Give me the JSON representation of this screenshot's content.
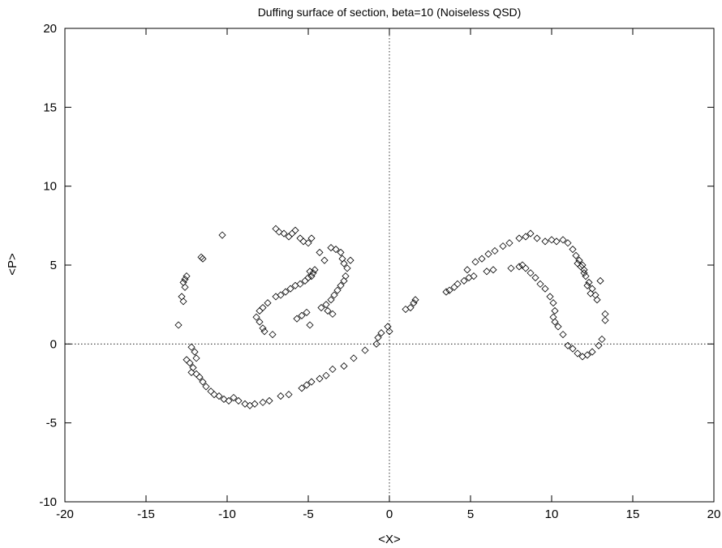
{
  "chart_data": {
    "type": "scatter",
    "title": "Duffing surface of section, beta=10 (Noiseless QSD)",
    "xlabel": "<X>",
    "ylabel": "<P>",
    "xlim": [
      -20,
      20
    ],
    "ylim": [
      -10,
      20
    ],
    "xticks": [
      -20,
      -15,
      -10,
      -5,
      0,
      5,
      10,
      15,
      20
    ],
    "yticks": [
      -10,
      -5,
      0,
      5,
      10,
      15,
      20
    ],
    "zero_lines": "dotted",
    "marker": "diamond",
    "series": [
      {
        "points": [
          [
            -10.3,
            6.9
          ],
          [
            -13.0,
            1.2
          ],
          [
            -12.5,
            4.3
          ],
          [
            -12.6,
            4.1
          ],
          [
            -12.7,
            3.9
          ],
          [
            -12.6,
            3.6
          ],
          [
            -12.8,
            3.0
          ],
          [
            -12.7,
            2.7
          ],
          [
            -11.6,
            5.5
          ],
          [
            -11.5,
            5.4
          ],
          [
            -7.0,
            7.3
          ],
          [
            -6.8,
            7.1
          ],
          [
            -6.5,
            7.0
          ],
          [
            -6.2,
            6.8
          ],
          [
            -6.0,
            7.0
          ],
          [
            -5.8,
            7.2
          ],
          [
            -5.5,
            6.7
          ],
          [
            -5.3,
            6.5
          ],
          [
            -5.0,
            6.4
          ],
          [
            -4.8,
            6.7
          ],
          [
            -4.3,
            5.8
          ],
          [
            -4.0,
            5.3
          ],
          [
            -3.6,
            6.1
          ],
          [
            -3.3,
            6.0
          ],
          [
            -3.0,
            5.8
          ],
          [
            -2.9,
            5.4
          ],
          [
            -2.8,
            5.1
          ],
          [
            -2.6,
            4.8
          ],
          [
            -2.4,
            5.3
          ],
          [
            -7.0,
            3.0
          ],
          [
            -6.7,
            3.1
          ],
          [
            -6.4,
            3.3
          ],
          [
            -6.1,
            3.5
          ],
          [
            -5.8,
            3.7
          ],
          [
            -5.5,
            3.8
          ],
          [
            -5.2,
            4.0
          ],
          [
            -5.0,
            4.2
          ],
          [
            -4.8,
            4.3
          ],
          [
            -4.7,
            4.5
          ],
          [
            -4.6,
            4.7
          ],
          [
            -4.9,
            4.6
          ],
          [
            -7.5,
            2.6
          ],
          [
            -7.8,
            2.3
          ],
          [
            -8.0,
            2.1
          ],
          [
            -8.2,
            1.7
          ],
          [
            -8.0,
            1.4
          ],
          [
            -7.8,
            1.0
          ],
          [
            -7.7,
            0.8
          ],
          [
            -7.2,
            0.6
          ],
          [
            -5.7,
            1.6
          ],
          [
            -5.4,
            1.8
          ],
          [
            -5.1,
            2.0
          ],
          [
            -4.9,
            1.2
          ],
          [
            -4.2,
            2.3
          ],
          [
            -3.9,
            2.5
          ],
          [
            -3.6,
            2.8
          ],
          [
            -3.4,
            3.1
          ],
          [
            -3.2,
            3.4
          ],
          [
            -3.0,
            3.7
          ],
          [
            -2.8,
            4.0
          ],
          [
            -2.7,
            4.3
          ],
          [
            -3.5,
            1.9
          ],
          [
            -3.8,
            2.1
          ],
          [
            -12.2,
            -0.2
          ],
          [
            -12.0,
            -0.5
          ],
          [
            -11.9,
            -0.9
          ],
          [
            -12.5,
            -1.0
          ],
          [
            -12.3,
            -1.2
          ],
          [
            -12.1,
            -1.5
          ],
          [
            -12.2,
            -1.8
          ],
          [
            -11.9,
            -1.9
          ],
          [
            -11.7,
            -2.1
          ],
          [
            -11.5,
            -2.4
          ],
          [
            -11.3,
            -2.7
          ],
          [
            -11.0,
            -3.0
          ],
          [
            -10.8,
            -3.2
          ],
          [
            -10.5,
            -3.3
          ],
          [
            -10.2,
            -3.5
          ],
          [
            -9.9,
            -3.6
          ],
          [
            -9.6,
            -3.4
          ],
          [
            -9.3,
            -3.6
          ],
          [
            -8.9,
            -3.8
          ],
          [
            -8.6,
            -3.9
          ],
          [
            -8.3,
            -3.8
          ],
          [
            -7.8,
            -3.7
          ],
          [
            -7.4,
            -3.6
          ],
          [
            -6.7,
            -3.3
          ],
          [
            -6.2,
            -3.2
          ],
          [
            -5.4,
            -2.8
          ],
          [
            -5.1,
            -2.6
          ],
          [
            -4.8,
            -2.4
          ],
          [
            -4.3,
            -2.2
          ],
          [
            -3.9,
            -2.0
          ],
          [
            -3.5,
            -1.6
          ],
          [
            -2.8,
            -1.4
          ],
          [
            -2.2,
            -0.9
          ],
          [
            -1.5,
            -0.4
          ],
          [
            -0.8,
            0.0
          ],
          [
            -0.7,
            0.4
          ],
          [
            -0.5,
            0.7
          ],
          [
            -0.1,
            1.1
          ],
          [
            0.0,
            0.8
          ],
          [
            1.0,
            2.2
          ],
          [
            1.3,
            2.3
          ],
          [
            1.5,
            2.6
          ],
          [
            1.6,
            2.8
          ],
          [
            3.5,
            3.3
          ],
          [
            3.7,
            3.4
          ],
          [
            4.0,
            3.6
          ],
          [
            4.2,
            3.8
          ],
          [
            4.6,
            4.0
          ],
          [
            4.9,
            4.2
          ],
          [
            5.2,
            4.3
          ],
          [
            6.0,
            4.6
          ],
          [
            6.4,
            4.7
          ],
          [
            7.5,
            4.8
          ],
          [
            8.0,
            4.9
          ],
          [
            4.8,
            4.7
          ],
          [
            5.3,
            5.2
          ],
          [
            5.7,
            5.4
          ],
          [
            6.1,
            5.7
          ],
          [
            6.5,
            5.9
          ],
          [
            7.0,
            6.2
          ],
          [
            7.4,
            6.4
          ],
          [
            8.0,
            6.7
          ],
          [
            8.4,
            6.8
          ],
          [
            8.7,
            7.0
          ],
          [
            9.1,
            6.7
          ],
          [
            9.6,
            6.5
          ],
          [
            10.0,
            6.6
          ],
          [
            10.3,
            6.5
          ],
          [
            10.7,
            6.6
          ],
          [
            11.0,
            6.4
          ],
          [
            11.3,
            6.0
          ],
          [
            11.5,
            5.6
          ],
          [
            11.7,
            5.3
          ],
          [
            11.9,
            5.0
          ],
          [
            12.0,
            4.7
          ],
          [
            12.1,
            4.3
          ],
          [
            12.3,
            3.9
          ],
          [
            12.5,
            3.5
          ],
          [
            12.7,
            3.1
          ],
          [
            12.8,
            2.8
          ],
          [
            13.0,
            4.0
          ],
          [
            8.2,
            5.0
          ],
          [
            8.4,
            4.8
          ],
          [
            8.7,
            4.5
          ],
          [
            9.0,
            4.2
          ],
          [
            9.3,
            3.8
          ],
          [
            9.6,
            3.5
          ],
          [
            9.9,
            3.0
          ],
          [
            10.1,
            2.6
          ],
          [
            10.2,
            2.1
          ],
          [
            10.1,
            1.7
          ],
          [
            10.2,
            1.4
          ],
          [
            10.4,
            1.1
          ],
          [
            10.7,
            0.6
          ],
          [
            11.0,
            -0.1
          ],
          [
            11.3,
            -0.3
          ],
          [
            11.6,
            -0.6
          ],
          [
            11.9,
            -0.8
          ],
          [
            12.2,
            -0.7
          ],
          [
            12.5,
            -0.5
          ],
          [
            12.9,
            -0.1
          ],
          [
            13.1,
            0.3
          ],
          [
            13.3,
            1.5
          ],
          [
            13.3,
            1.9
          ],
          [
            11.6,
            5.1
          ],
          [
            11.8,
            4.9
          ],
          [
            12.0,
            4.5
          ],
          [
            12.2,
            3.7
          ],
          [
            12.4,
            3.2
          ]
        ]
      }
    ]
  }
}
